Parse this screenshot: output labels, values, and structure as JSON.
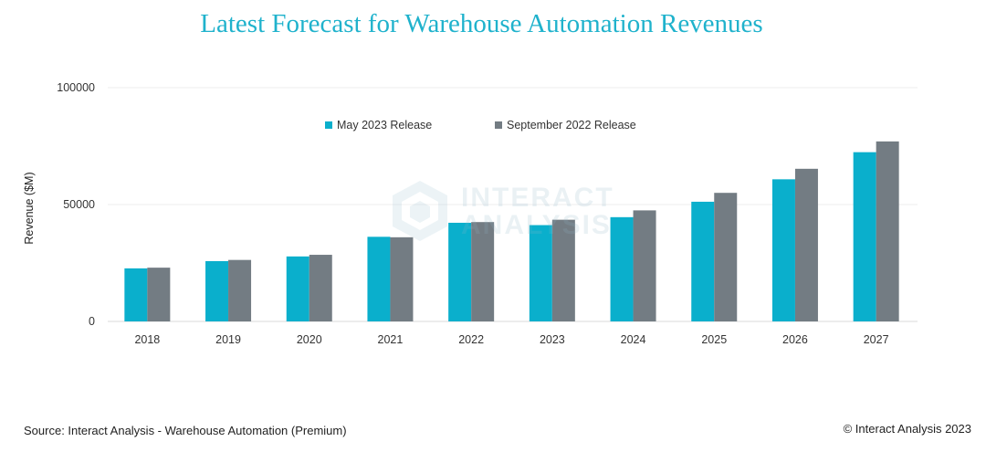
{
  "title": "Latest Forecast for Warehouse Automation Revenues",
  "source": "Source: Interact Analysis - Warehouse Automation (Premium)",
  "copyright": "© Interact Analysis 2023",
  "watermark": {
    "line1": "INTERACT",
    "line2": "ANALYSIS"
  },
  "colors": {
    "may_2023": "#0aafcc",
    "sep_2022": "#737c83"
  },
  "chart_data": {
    "type": "bar",
    "title": "Latest Forecast for Warehouse Automation Revenues",
    "ylabel": "Revenue ($M)",
    "xlabel": "",
    "ylim": [
      0,
      100000
    ],
    "yticks": [
      "0",
      "50000",
      "100000"
    ],
    "grid": true,
    "legend_position": "top-center",
    "categories": [
      "2018",
      "2019",
      "2020",
      "2021",
      "2022",
      "2023",
      "2024",
      "2025",
      "2026",
      "2027"
    ],
    "series": [
      {
        "name": "May 2023 Release",
        "values": [
          22700,
          25800,
          27800,
          36200,
          42200,
          41200,
          44600,
          51200,
          60800,
          72400
        ]
      },
      {
        "name": "September 2022 Release",
        "values": [
          23000,
          26300,
          28500,
          36000,
          42500,
          43500,
          47500,
          55000,
          65300,
          77000
        ]
      }
    ]
  }
}
